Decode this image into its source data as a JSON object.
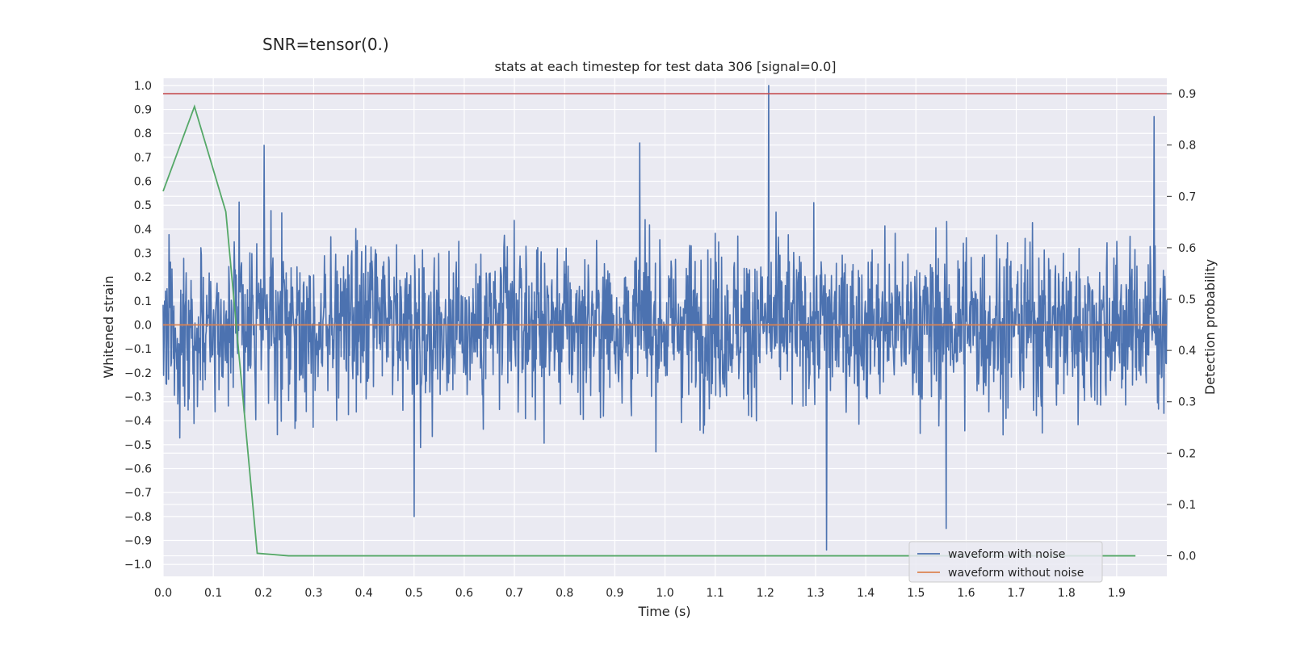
{
  "suptitle": "SNR=tensor(0.)",
  "chart_data": {
    "type": "line",
    "title": "stats at each timestep for test data 306 [signal=0.0]",
    "xlabel": "Time (s)",
    "ylabel": "Whitened strain",
    "y2label": "Detection probability",
    "xlim": [
      0.0,
      2.0
    ],
    "ylim": [
      -1.05,
      1.03
    ],
    "y2lim": [
      -0.04,
      0.93
    ],
    "x_ticks": [
      "0.0",
      "0.1",
      "0.2",
      "0.3",
      "0.4",
      "0.5",
      "0.6",
      "0.7",
      "0.8",
      "0.9",
      "1.0",
      "1.1",
      "1.2",
      "1.3",
      "1.4",
      "1.5",
      "1.6",
      "1.7",
      "1.8",
      "1.9"
    ],
    "y_ticks": [
      "1.0",
      "0.9",
      "0.8",
      "0.7",
      "0.6",
      "0.5",
      "0.4",
      "0.3",
      "0.2",
      "0.1",
      "0.0",
      "−0.1",
      "−0.2",
      "−0.3",
      "−0.4",
      "−0.5",
      "−0.6",
      "−0.7",
      "−0.8",
      "−0.9",
      "−1.0"
    ],
    "y2_ticks": [
      "0.9",
      "0.8",
      "0.7",
      "0.6",
      "0.5",
      "0.4",
      "0.3",
      "0.2",
      "0.1",
      "0.0"
    ],
    "grid": true,
    "legend_position": "lower-right",
    "colors": {
      "background": "#eaeaf2",
      "noisy": "#4c72b0",
      "clean": "#dd8452",
      "probability": "#55a868",
      "threshold": "#c44e52"
    },
    "series": [
      {
        "name": "waveform with noise",
        "axis": "left",
        "x_range": [
          0.0,
          2.0
        ],
        "sample_count": 2048,
        "approx_amplitude": 0.5,
        "extremes": [
          {
            "x": 0.201,
            "y": 0.75
          },
          {
            "x": 0.5,
            "y": -0.8
          },
          {
            "x": 0.95,
            "y": 0.76
          },
          {
            "x": 1.207,
            "y": 1.0
          },
          {
            "x": 1.322,
            "y": -0.94
          },
          {
            "x": 1.56,
            "y": -0.85
          },
          {
            "x": 1.975,
            "y": 0.87
          }
        ]
      },
      {
        "name": "waveform without noise",
        "axis": "left",
        "x": [
          0.0,
          2.0
        ],
        "y": [
          0.0,
          0.0
        ]
      },
      {
        "name": "",
        "axis": "right",
        "x": [
          0.0,
          0.0625,
          0.125,
          0.1875,
          0.25,
          1.9375
        ],
        "y": [
          0.71,
          0.875,
          0.67,
          0.005,
          0.0,
          0.0
        ]
      },
      {
        "name": "",
        "axis": "right",
        "x": [
          0.0,
          2.0
        ],
        "y": [
          0.9,
          0.9
        ]
      }
    ]
  }
}
